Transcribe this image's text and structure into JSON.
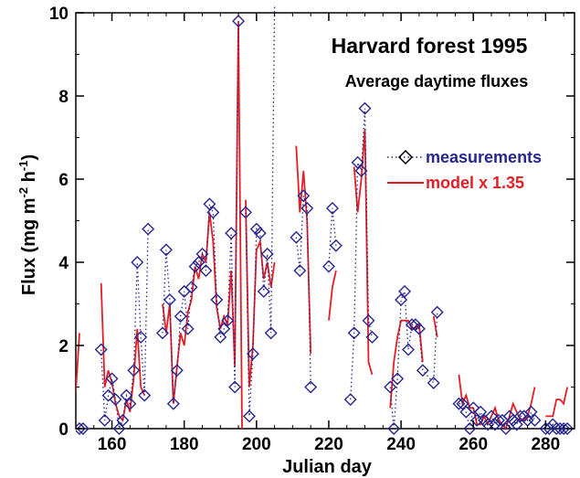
{
  "chart_data": {
    "type": "line",
    "title": "Harvard forest 1995",
    "subtitle": "Average daytime fluxes",
    "xlabel": "Julian day",
    "ylabel_main": "Flux (mg m",
    "ylabel_sup1": "-2",
    "ylabel_mid": " h",
    "ylabel_sup2": "-1",
    "ylabel_end": ")",
    "xlim": [
      150,
      288
    ],
    "ylim": [
      0,
      10
    ],
    "xticks": [
      160,
      180,
      200,
      220,
      240,
      260,
      280
    ],
    "yticks": [
      0,
      2,
      4,
      6,
      8,
      10
    ],
    "grid": false,
    "legend_position": "top-right",
    "series": [
      {
        "name": "measurements",
        "color": "#27278f",
        "marker": "diamond",
        "line": "dotted",
        "segments": [
          [
            [
              151,
              0
            ],
            [
              152,
              0
            ]
          ],
          [
            [
              157,
              1.9
            ],
            [
              158,
              0.2
            ],
            [
              159,
              0.8
            ],
            [
              160,
              1.2
            ],
            [
              161,
              0.7
            ],
            [
              162,
              0
            ],
            [
              163,
              0.2
            ],
            [
              164,
              0.8
            ],
            [
              165,
              0.6
            ],
            [
              166,
              1.4
            ],
            [
              167,
              4.0
            ],
            [
              168,
              2.2
            ],
            [
              169,
              0.8
            ],
            [
              170,
              4.8
            ]
          ],
          [
            [
              174,
              2.3
            ],
            [
              175,
              4.3
            ],
            [
              176,
              3.1
            ],
            [
              177,
              0.6
            ],
            [
              178,
              1.4
            ],
            [
              179,
              2.7
            ],
            [
              180,
              3.3
            ],
            [
              181,
              2.4
            ],
            [
              182,
              3.4
            ],
            [
              183,
              3.9
            ],
            [
              184,
              4.0
            ],
            [
              185,
              4.2
            ],
            [
              186,
              3.8
            ],
            [
              187,
              5.4
            ],
            [
              188,
              5.2
            ],
            [
              189,
              3.1
            ],
            [
              190,
              2.2
            ],
            [
              191,
              2.4
            ],
            [
              192,
              2.6
            ],
            [
              193,
              4.7
            ],
            [
              194,
              1.0
            ],
            [
              195,
              9.8
            ]
          ],
          [
            [
              197,
              5.2
            ],
            [
              198,
              0.3
            ],
            [
              199,
              1.8
            ],
            [
              200,
              4.8
            ],
            [
              201,
              4.7
            ],
            [
              202,
              3.3
            ],
            [
              203,
              4.2
            ],
            [
              204,
              2.3
            ],
            [
              205,
              10.2
            ]
          ],
          [
            [
              211,
              4.6
            ],
            [
              212,
              3.8
            ],
            [
              213,
              5.6
            ],
            [
              214,
              5.3
            ],
            [
              215,
              1.0
            ]
          ],
          [
            [
              220,
              3.9
            ],
            [
              221,
              5.3
            ],
            [
              222,
              4.4
            ]
          ],
          [
            [
              226,
              0.7
            ],
            [
              227,
              2.3
            ],
            [
              228,
              6.4
            ],
            [
              229,
              6.2
            ],
            [
              230,
              7.7
            ],
            [
              231,
              2.6
            ],
            [
              232,
              2.2
            ]
          ],
          [
            [
              237,
              1.0
            ],
            [
              238,
              0
            ],
            [
              239,
              1.2
            ],
            [
              240,
              3.1
            ],
            [
              241,
              3.3
            ],
            [
              242,
              1.9
            ],
            [
              243,
              2.5
            ],
            [
              244,
              2.5
            ],
            [
              245,
              2.4
            ],
            [
              246,
              1.4
            ],
            [
              249,
              1.1
            ],
            [
              250,
              2.8
            ]
          ],
          [
            [
              256,
              0.6
            ],
            [
              257,
              0.6
            ],
            [
              258,
              0.4
            ],
            [
              259,
              0
            ],
            [
              260,
              0.5
            ],
            [
              261,
              0.2
            ],
            [
              262,
              0.4
            ],
            [
              263,
              0.2
            ],
            [
              264,
              0.1
            ],
            [
              265,
              0.3
            ],
            [
              266,
              0.1
            ],
            [
              267,
              0.2
            ],
            [
              268,
              0.2
            ],
            [
              269,
              0
            ],
            [
              270,
              0.3
            ],
            [
              271,
              0.2
            ],
            [
              272,
              0.1
            ],
            [
              273,
              0.3
            ],
            [
              274,
              0.3
            ],
            [
              275,
              0.2
            ],
            [
              276,
              0.4
            ],
            [
              277,
              0.2
            ]
          ],
          [
            [
              280,
              0
            ],
            [
              281,
              0
            ],
            [
              282,
              0.1
            ],
            [
              283,
              0
            ],
            [
              284,
              0
            ],
            [
              285,
              0
            ],
            [
              286,
              0
            ]
          ]
        ]
      },
      {
        "name": "model x 1.35",
        "color": "#e31e24",
        "line": "solid",
        "segments": [
          [
            [
              150,
              0.9
            ],
            [
              151,
              2.3
            ]
          ],
          [
            [
              157,
              3.5
            ],
            [
              158,
              1.0
            ],
            [
              159,
              1.4
            ],
            [
              160,
              1.1
            ],
            [
              161,
              0.6
            ],
            [
              162,
              0.3
            ],
            [
              163,
              0.2
            ],
            [
              164,
              0.7
            ],
            [
              165,
              0.4
            ],
            [
              166,
              1.2
            ],
            [
              167,
              2.4
            ],
            [
              168,
              1.0
            ],
            [
              169,
              0.8
            ]
          ],
          [
            [
              174,
              3.0
            ],
            [
              175,
              2.3
            ],
            [
              176,
              3.0
            ],
            [
              177,
              0.6
            ],
            [
              178,
              1.5
            ],
            [
              179,
              2.3
            ],
            [
              180,
              2.0
            ],
            [
              181,
              2.8
            ],
            [
              182,
              3.1
            ],
            [
              183,
              3.9
            ],
            [
              184,
              3.6
            ],
            [
              185,
              4.2
            ],
            [
              186,
              4.0
            ],
            [
              187,
              5.2
            ],
            [
              188,
              4.5
            ],
            [
              189,
              2.9
            ],
            [
              190,
              2.4
            ],
            [
              191,
              2.7
            ],
            [
              192,
              2.5
            ],
            [
              193,
              3.8
            ],
            [
              194,
              1.5
            ],
            [
              195,
              9.8
            ],
            [
              196,
              0
            ]
          ],
          [
            [
              197,
              5.5
            ],
            [
              198,
              1.0
            ],
            [
              199,
              2.0
            ],
            [
              200,
              4.3
            ],
            [
              201,
              4.5
            ],
            [
              202,
              3.6
            ],
            [
              203,
              4.0
            ],
            [
              204,
              3.4
            ],
            [
              205,
              4.0
            ]
          ],
          [
            [
              211,
              6.8
            ],
            [
              212,
              5.2
            ],
            [
              213,
              6.2
            ],
            [
              214,
              5.0
            ],
            [
              215,
              1.8
            ]
          ],
          [
            [
              220,
              2.6
            ],
            [
              221,
              3.4
            ],
            [
              222,
              3.8
            ]
          ],
          [
            [
              227,
              6.3
            ],
            [
              228,
              5.2
            ],
            [
              229,
              6.0
            ],
            [
              230,
              7.2
            ],
            [
              231,
              1.6
            ],
            [
              232,
              1.3
            ]
          ],
          [
            [
              237,
              0.5
            ],
            [
              238,
              1.6
            ],
            [
              239,
              2.2
            ],
            [
              240,
              2.6
            ],
            [
              241,
              2.6
            ],
            [
              242,
              2.6
            ],
            [
              243,
              2.4
            ],
            [
              244,
              2.4
            ],
            [
              245,
              2.5
            ],
            [
              246,
              1.6
            ]
          ],
          [
            [
              249,
              2.7
            ],
            [
              250,
              2.2
            ]
          ],
          [
            [
              256,
              1.3
            ],
            [
              257,
              0.6
            ],
            [
              258,
              0.8
            ],
            [
              259,
              0.5
            ],
            [
              260,
              0.5
            ],
            [
              261,
              0.1
            ],
            [
              262,
              0.1
            ],
            [
              263,
              0.3
            ],
            [
              264,
              0.1
            ],
            [
              265,
              0.3
            ],
            [
              266,
              0.5
            ],
            [
              267,
              0.2
            ],
            [
              268,
              0.1
            ],
            [
              269,
              0
            ],
            [
              270,
              0.3
            ],
            [
              271,
              0.6
            ],
            [
              272,
              0.4
            ],
            [
              273,
              0.2
            ],
            [
              274,
              0.2
            ],
            [
              275,
              0.3
            ],
            [
              276,
              0.6
            ],
            [
              277,
              1.0
            ]
          ],
          [
            [
              280,
              0.3
            ],
            [
              281,
              0.3
            ],
            [
              282,
              0.3
            ],
            [
              283,
              0.7
            ],
            [
              284,
              0.7
            ],
            [
              285,
              0.6
            ],
            [
              286,
              1.0
            ]
          ]
        ]
      }
    ]
  },
  "legend": {
    "measurements_label": "measurements",
    "model_label": "model x 1.35"
  }
}
